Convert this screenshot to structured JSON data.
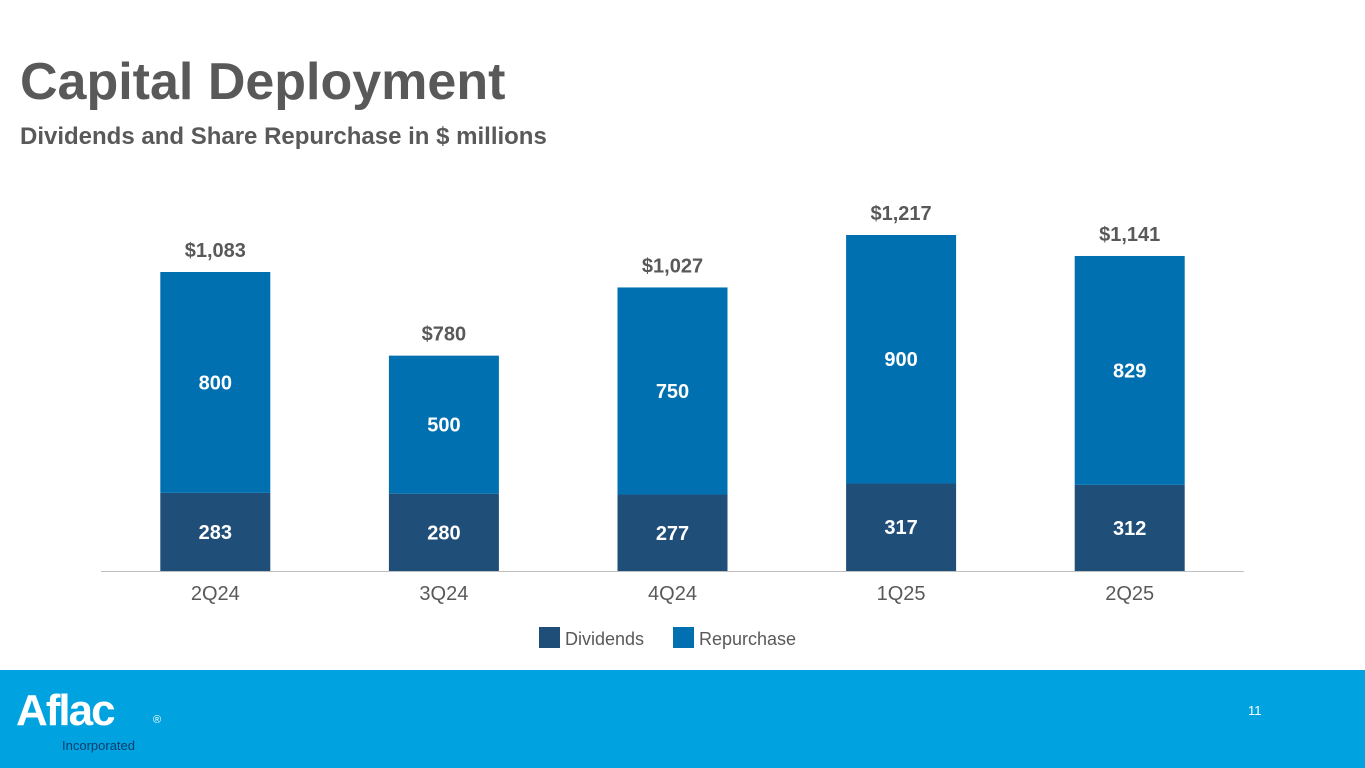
{
  "slide": {
    "title": "Capital Deployment",
    "subtitle": "Dividends and Share Repurchase in $ millions",
    "page_number": "11"
  },
  "footer": {
    "logo_text": "Aflac",
    "logo_registered": "®",
    "logo_subtext": "Incorporated",
    "background_color": "#00a3e0"
  },
  "colors": {
    "dividends": "#1f4e79",
    "repurchase": "#0070b0",
    "label_dark": "#595959",
    "axis": "#bfbfbf"
  },
  "chart_data": {
    "type": "bar",
    "stacked": true,
    "title": "Dividends and Share Repurchase in $ millions",
    "xlabel": "",
    "ylabel": "",
    "ylim": [
      0,
      1217
    ],
    "grid": false,
    "legend_position": "bottom",
    "categories": [
      "2Q24",
      "3Q24",
      "4Q24",
      "1Q25",
      "2Q25"
    ],
    "series": [
      {
        "name": "Dividends",
        "values": [
          283,
          280,
          277,
          317,
          312
        ],
        "labels": [
          "283",
          "280",
          "277",
          "317",
          "312"
        ]
      },
      {
        "name": "Repurchase",
        "values": [
          800,
          500,
          750,
          900,
          829
        ],
        "labels": [
          "800",
          "500",
          "750",
          "900",
          "829"
        ]
      }
    ],
    "totals": [
      "$1,083",
      "$780",
      "$1,027",
      "$1,217",
      "$1,141"
    ]
  }
}
